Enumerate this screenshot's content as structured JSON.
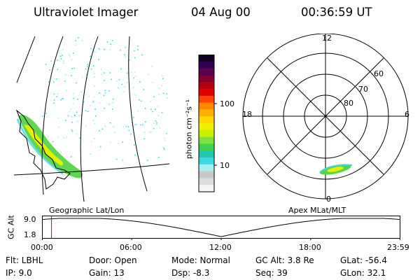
{
  "header": {
    "instrument": "Ultraviolet Imager",
    "date": "04 Aug 00",
    "time": "00:36:59 UT"
  },
  "colorbar": {
    "unit_label": "photon cm⁻²s⁻¹",
    "ticks": [
      "100",
      "10"
    ],
    "colors": [
      "#f4f4f4",
      "#dcdcdc",
      "#c8c8c8",
      "#a8eef0",
      "#40d8e0",
      "#20c8b0",
      "#40d050",
      "#80e040",
      "#c8f000",
      "#f0f000",
      "#ffd800",
      "#ffb000",
      "#ff8800",
      "#ff4400",
      "#e00000",
      "#b00010",
      "#800030",
      "#5a0050",
      "#300050",
      "#100020"
    ]
  },
  "polar": {
    "mlt_labels": {
      "top": "12",
      "left": "18",
      "right": "6",
      "bottom": "0"
    },
    "lat_labels": [
      "60",
      "70",
      "80"
    ]
  },
  "map_labels": {
    "geographic": "Geographic Lat/Lon",
    "apex": "Apex MLat/MLT"
  },
  "alt_plot": {
    "axis_label": "GC Alt",
    "y_ticks": [
      "9.0",
      "1.8"
    ],
    "x_ticks": [
      "00:00",
      "06:00",
      "12:00",
      "18:00",
      "23:59"
    ],
    "marker_time": "00:36:59",
    "marker_color": "#cc0000"
  },
  "info": {
    "flt": "Flt: LBHL",
    "ip": "IP:  9.0",
    "door": "Door: Open",
    "gain": "Gain: 13",
    "mode": "Mode: Normal",
    "dsp": "Dsp:    -8.3",
    "gcalt": "GC Alt: 3.8 Re",
    "seq": "Seq: 39",
    "glat": "GLat: -56.4",
    "glon": "GLon:  32.1"
  }
}
